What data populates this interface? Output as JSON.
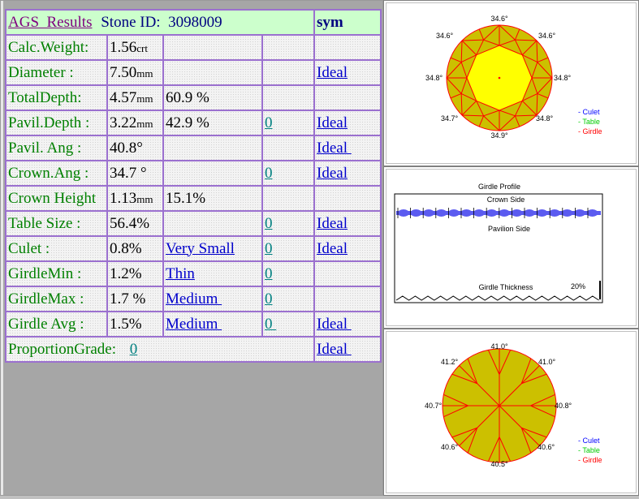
{
  "header": {
    "title": "AGS  Results",
    "stone_label": "Stone ID:  3098009",
    "sym": "sym"
  },
  "rows": [
    {
      "label": "Calc.Weight:",
      "value": "1.56",
      "unit": "crt",
      "pct": "",
      "grade": "",
      "rating": ""
    },
    {
      "label": "Diameter :",
      "value": "7.50",
      "unit": "mm",
      "pct": "",
      "grade": "",
      "rating": "Ideal"
    },
    {
      "label": "TotalDepth:",
      "value": "4.57",
      "unit": "mm",
      "pct": "60.9 %",
      "grade": "",
      "rating": ""
    },
    {
      "label": "Pavil.Depth :",
      "value": "3.22",
      "unit": "mm",
      "pct": "42.9 %",
      "grade": "0",
      "rating": "Ideal"
    },
    {
      "label": "Pavil. Ang :",
      "value": "40.8°",
      "unit": "",
      "pct": "",
      "grade": "",
      "rating": "Ideal "
    },
    {
      "label": "Crown.Ang :",
      "value": "34.7 °",
      "unit": "",
      "pct": "",
      "grade": "0",
      "rating": "Ideal"
    },
    {
      "label": "Crown Height",
      "value": "1.13",
      "unit": "mm",
      "pct": "15.1%",
      "grade": "",
      "rating": ""
    },
    {
      "label": "Table Size :",
      "value": "56.4%",
      "unit": "",
      "pct": "",
      "grade": "0",
      "rating": "Ideal"
    },
    {
      "label": "Culet :",
      "value": "0.8%",
      "unit": "",
      "pct": "Very Small",
      "grade": "0",
      "rating": "Ideal"
    },
    {
      "label": "GirdleMin :",
      "value": "1.2%",
      "unit": "",
      "pct": "Thin",
      "grade": "0",
      "rating": ""
    },
    {
      "label": "GirdleMax :",
      "value": "1.7 %",
      "unit": "",
      "pct": "Medium ",
      "grade": "0",
      "rating": ""
    },
    {
      "label": "Girdle Avg :",
      "value": "1.5%",
      "unit": "",
      "pct": "Medium ",
      "grade": "0 ",
      "rating": "Ideal "
    }
  ],
  "proportion": {
    "label": "ProportionGrade:",
    "grade": "0",
    "rating": "Ideal "
  },
  "crown_view": {
    "angles": {
      "top": "34.6°",
      "top_left": "34.6°",
      "top_right": "34.6°",
      "left": "34.8°",
      "right": "34.8°",
      "bottom_left": "34.7°",
      "bottom_right": "34.8°",
      "bottom": "34.9°"
    },
    "legend": [
      "- Culet",
      "- Table",
      "- Girdle"
    ],
    "colors": {
      "culet": "#0000ff",
      "table": "#00ff00",
      "girdle": "#ff0000",
      "facet": "#ccc000",
      "table_fill": "#ffff00"
    }
  },
  "girdle_profile": {
    "title": "Girdle Profile",
    "crown_side": "Crown Side",
    "pavilion_side": "Pavilion Side",
    "thickness_label": "Girdle Thickness",
    "scale": "20%"
  },
  "pavilion_view": {
    "angles": {
      "top": "41.0°",
      "top_left": "41.2°",
      "top_right": "41.0°",
      "left": "40.7°",
      "right": "40.8°",
      "bottom_left": "40.6°",
      "bottom_right": "40.6°",
      "bottom": "40.5°"
    },
    "legend": [
      "- Culet",
      "- Table",
      "- Girdle"
    ]
  }
}
